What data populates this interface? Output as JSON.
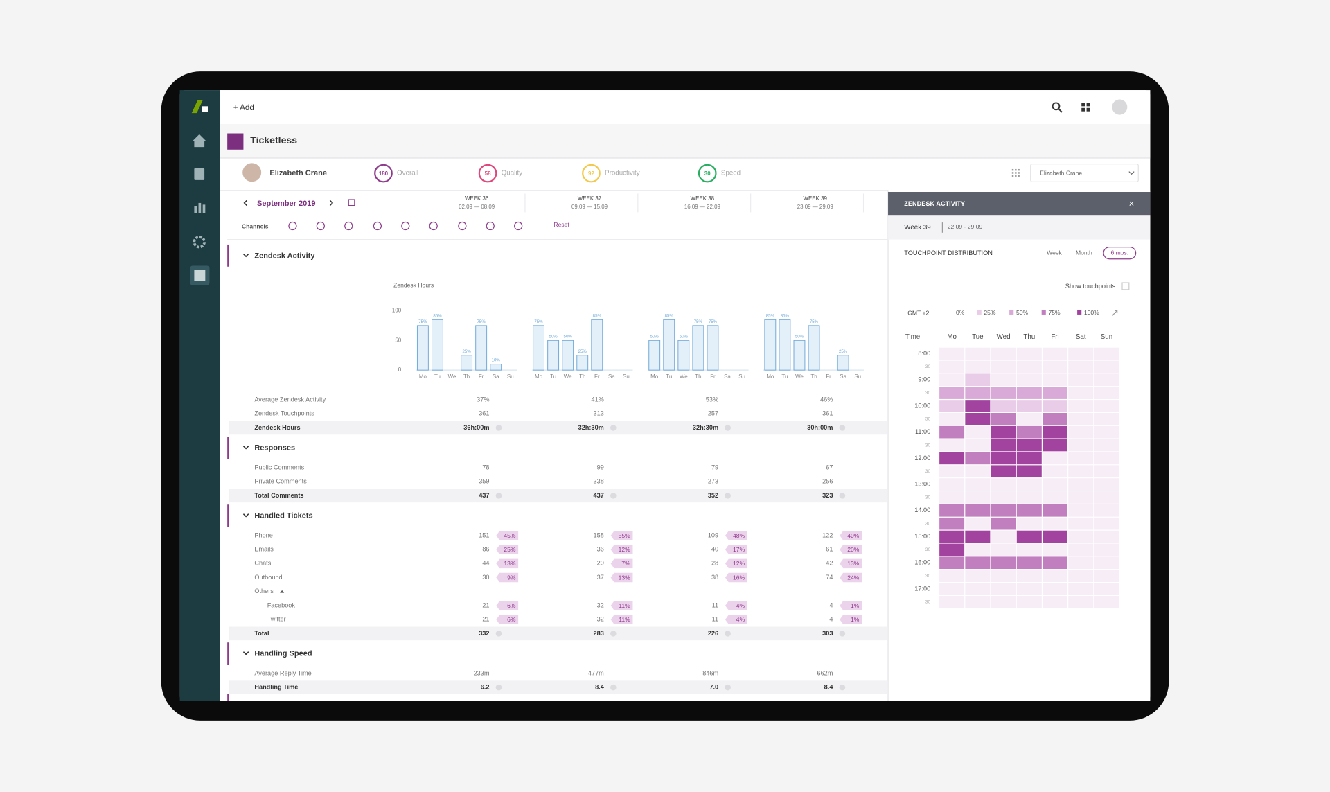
{
  "topbar": {
    "add": "+ Add"
  },
  "app": {
    "title": "Ticketless"
  },
  "agent": {
    "name": "Elizabeth Crane",
    "metrics": [
      {
        "value": 180,
        "label": "Overall",
        "color": "#8e3b8c"
      },
      {
        "value": 58,
        "label": "Quality",
        "color": "#e0457b"
      },
      {
        "value": 92,
        "label": "Productivity",
        "color": "#f2c94c"
      },
      {
        "value": 30,
        "label": "Speed",
        "color": "#27ae60"
      }
    ],
    "selector": "Elizabeth Crane"
  },
  "period": {
    "month": "September 2019",
    "weeks": [
      {
        "label": "WEEK 36",
        "range": "02.09 — 08.09"
      },
      {
        "label": "WEEK 37",
        "range": "09.09 — 15.09"
      },
      {
        "label": "WEEK 38",
        "range": "16.09 — 22.09"
      },
      {
        "label": "WEEK 39",
        "range": "23.09 — 29.09"
      }
    ],
    "channels": "Channels",
    "reset": "Reset"
  },
  "sections": [
    {
      "title": "Zendesk Activity",
      "rows": [
        {
          "label": "Average Zendesk Activity",
          "values": [
            "37%",
            "41%",
            "53%",
            "46%"
          ]
        },
        {
          "label": "Zendesk Touchpoints",
          "values": [
            "361",
            "313",
            "257",
            "361"
          ]
        },
        {
          "label": "Zendesk Hours",
          "values": [
            "36h:00m",
            "32h:30m",
            "32h:30m",
            "30h:00m"
          ],
          "bold": true
        }
      ]
    },
    {
      "title": "Responses",
      "rows": [
        {
          "label": "Public Comments",
          "values": [
            "78",
            "99",
            "79",
            "67"
          ]
        },
        {
          "label": "Private Comments",
          "values": [
            "359",
            "338",
            "273",
            "256"
          ]
        },
        {
          "label": "Total Comments",
          "values": [
            "437",
            "437",
            "352",
            "323"
          ],
          "bold": true
        }
      ]
    },
    {
      "title": "Handled Tickets",
      "rows": [
        {
          "label": "Phone",
          "values": [
            "151",
            "158",
            "109",
            "122"
          ],
          "shares": [
            "45%",
            "55%",
            "48%",
            "40%"
          ]
        },
        {
          "label": "Emails",
          "values": [
            "86",
            "36",
            "40",
            "61"
          ],
          "shares": [
            "25%",
            "12%",
            "17%",
            "20%"
          ]
        },
        {
          "label": "Chats",
          "values": [
            "44",
            "20",
            "28",
            "42"
          ],
          "shares": [
            "13%",
            "7%",
            "12%",
            "13%"
          ]
        },
        {
          "label": "Outbound",
          "values": [
            "30",
            "37",
            "38",
            "74"
          ],
          "shares": [
            "9%",
            "13%",
            "16%",
            "24%"
          ]
        },
        {
          "label": "Others"
        },
        {
          "label": "Facebook",
          "values": [
            "21",
            "32",
            "11",
            "4"
          ],
          "shares": [
            "6%",
            "11%",
            "4%",
            "1%"
          ],
          "indent": true
        },
        {
          "label": "Twitter",
          "values": [
            "21",
            "32",
            "11",
            "4"
          ],
          "shares": [
            "6%",
            "11%",
            "4%",
            "1%"
          ],
          "indent": true
        },
        {
          "label": "Total",
          "values": [
            "332",
            "283",
            "226",
            "303"
          ],
          "bold": true
        }
      ]
    },
    {
      "title": "Handling Speed",
      "rows": [
        {
          "label": "Average Reply Time",
          "values": [
            "233m",
            "477m",
            "846m",
            "662m"
          ]
        },
        {
          "label": "Handling Time",
          "values": [
            "6.2",
            "8.4",
            "7.0",
            "8.4"
          ],
          "bold": true
        }
      ]
    }
  ],
  "panel": {
    "title": "ZENDESK ACTIVITY",
    "close": "×",
    "week": "Week 39",
    "range": "22.09 - 29.09",
    "heading": "TOUCHPOINT DISTRIBUTION",
    "tabs": [
      "Week",
      "Month",
      "6 mos."
    ],
    "active_tab": 2,
    "toggle": "Show touchpoints",
    "timezone": "GMT +2"
  },
  "chart_data": [
    {
      "type": "bar",
      "title": "Zendesk Hours",
      "categories": [
        "Mo",
        "Tu",
        "We",
        "Th",
        "Fr",
        "Sa",
        "Su"
      ],
      "ylim": [
        0,
        100
      ],
      "yticks": [
        0,
        50,
        100
      ],
      "color": "#6fa9d8",
      "series": [
        {
          "values": [
            75,
            85,
            0,
            25,
            75,
            10,
            0
          ],
          "value_labels": [
            "75%",
            "85%",
            null,
            "25%",
            "75%",
            "10%",
            null
          ]
        },
        {
          "values": [
            75,
            50,
            50,
            25,
            85,
            0,
            0
          ],
          "value_labels": [
            "75%",
            "50%",
            "50%",
            "25%",
            "85%",
            null,
            null
          ]
        },
        {
          "values": [
            50,
            85,
            50,
            75,
            75,
            0,
            0
          ],
          "value_labels": [
            "50%",
            "85%",
            "50%",
            "75%",
            "75%",
            null,
            null
          ]
        },
        {
          "values": [
            85,
            85,
            50,
            75,
            0,
            25,
            0
          ],
          "value_labels": [
            "85%",
            "85%",
            "50%",
            "75%",
            null,
            "25%",
            null
          ]
        }
      ]
    },
    {
      "type": "heatmap",
      "ylabel": "Time",
      "x": [
        "Mo",
        "Tue",
        "Wed",
        "Thu",
        "Fri",
        "Sat",
        "Sun"
      ],
      "y": [
        "8:00",
        "30",
        "9:00",
        "30",
        "10:00",
        "30",
        "11:00",
        "30",
        "12:00",
        "30",
        "13:00",
        "30",
        "14:00",
        "30",
        "15:00",
        "30",
        "16:00",
        "30",
        "17:00",
        "30"
      ],
      "levels": [
        {
          "value": 0,
          "label": "0%"
        },
        {
          "value": 25,
          "label": "25%"
        },
        {
          "value": 50,
          "label": "50%"
        },
        {
          "value": 75,
          "label": "75%"
        },
        {
          "value": 100,
          "label": "100%"
        }
      ],
      "colors": [
        "#f6edf6",
        "#e9cde8",
        "#d9a9d7",
        "#c27fc0",
        "#a2449f"
      ],
      "values": [
        [
          0,
          0,
          0,
          0,
          0,
          0,
          0
        ],
        [
          0,
          0,
          0,
          0,
          0,
          0,
          0
        ],
        [
          0,
          25,
          0,
          0,
          0,
          0,
          0
        ],
        [
          50,
          50,
          50,
          50,
          50,
          0,
          0
        ],
        [
          25,
          100,
          25,
          25,
          25,
          0,
          0
        ],
        [
          0,
          100,
          75,
          0,
          75,
          0,
          0
        ],
        [
          75,
          0,
          100,
          75,
          100,
          0,
          0
        ],
        [
          0,
          0,
          100,
          100,
          100,
          0,
          0
        ],
        [
          100,
          75,
          100,
          100,
          0,
          0,
          0
        ],
        [
          0,
          0,
          100,
          100,
          0,
          0,
          0
        ],
        [
          0,
          0,
          0,
          0,
          0,
          0,
          0
        ],
        [
          0,
          0,
          0,
          0,
          0,
          0,
          0
        ],
        [
          75,
          75,
          75,
          75,
          75,
          0,
          0
        ],
        [
          75,
          0,
          75,
          0,
          0,
          0,
          0
        ],
        [
          100,
          100,
          0,
          100,
          100,
          0,
          0
        ],
        [
          100,
          0,
          0,
          0,
          0,
          0,
          0
        ],
        [
          75,
          75,
          75,
          75,
          75,
          0,
          0
        ],
        [
          0,
          0,
          0,
          0,
          0,
          0,
          0
        ],
        [
          0,
          0,
          0,
          0,
          0,
          0,
          0
        ],
        [
          0,
          0,
          0,
          0,
          0,
          0,
          0
        ]
      ]
    }
  ]
}
